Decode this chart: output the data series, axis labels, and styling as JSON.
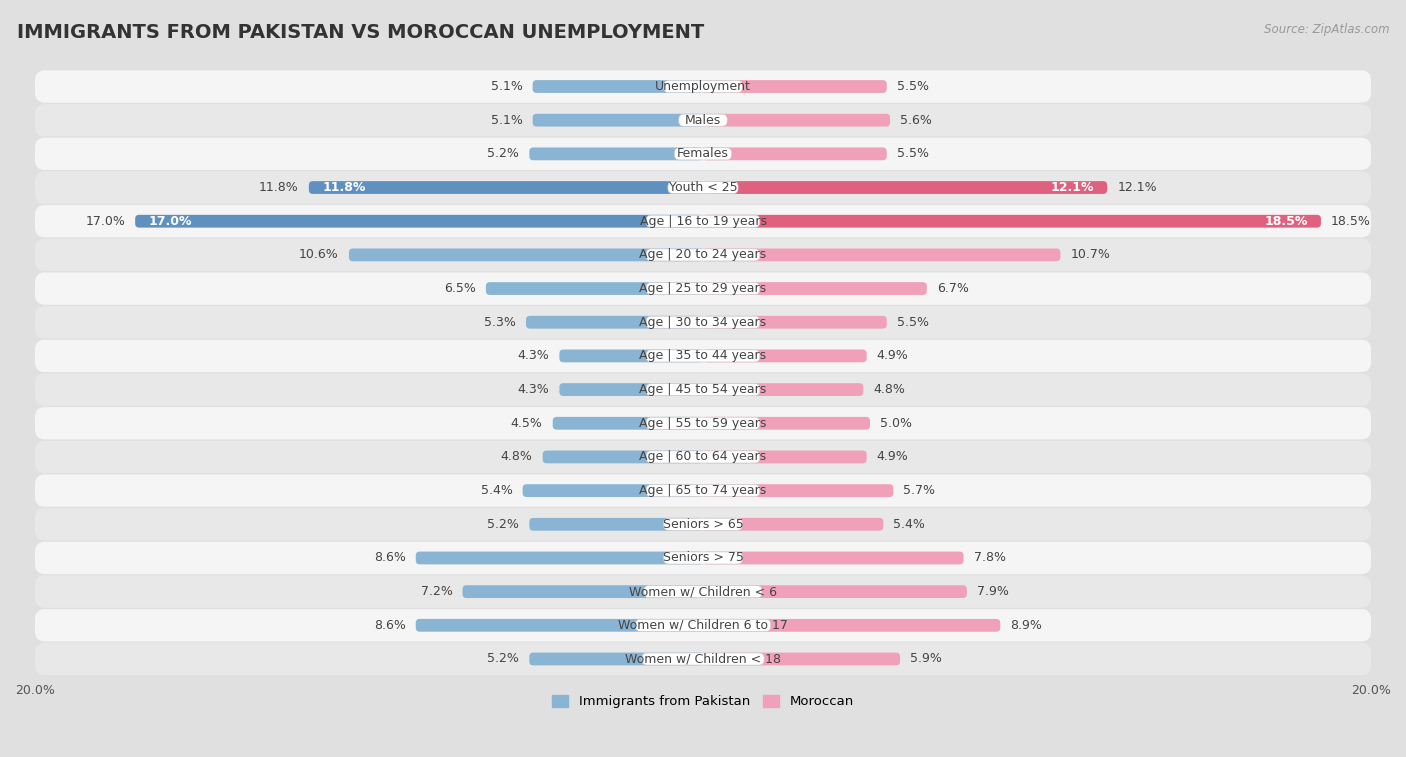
{
  "title": "IMMIGRANTS FROM PAKISTAN VS MOROCCAN UNEMPLOYMENT",
  "source": "Source: ZipAtlas.com",
  "categories": [
    "Unemployment",
    "Males",
    "Females",
    "Youth < 25",
    "Age | 16 to 19 years",
    "Age | 20 to 24 years",
    "Age | 25 to 29 years",
    "Age | 30 to 34 years",
    "Age | 35 to 44 years",
    "Age | 45 to 54 years",
    "Age | 55 to 59 years",
    "Age | 60 to 64 years",
    "Age | 65 to 74 years",
    "Seniors > 65",
    "Seniors > 75",
    "Women w/ Children < 6",
    "Women w/ Children 6 to 17",
    "Women w/ Children < 18"
  ],
  "pakistan_values": [
    5.1,
    5.1,
    5.2,
    11.8,
    17.0,
    10.6,
    6.5,
    5.3,
    4.3,
    4.3,
    4.5,
    4.8,
    5.4,
    5.2,
    8.6,
    7.2,
    8.6,
    5.2
  ],
  "moroccan_values": [
    5.5,
    5.6,
    5.5,
    12.1,
    18.5,
    10.7,
    6.7,
    5.5,
    4.9,
    4.8,
    5.0,
    4.9,
    5.7,
    5.4,
    7.8,
    7.9,
    8.9,
    5.9
  ],
  "pakistan_color": "#8ab4d4",
  "moroccan_color": "#f0a0b8",
  "pakistan_highlight_color": "#6090c0",
  "moroccan_highlight_color": "#e06080",
  "row_colors": [
    "#f5f5f5",
    "#e8e8e8"
  ],
  "background_color": "#e0e0e0",
  "xlim": 20.0,
  "legend_pakistan": "Immigrants from Pakistan",
  "legend_moroccan": "Moroccan",
  "title_fontsize": 14,
  "label_fontsize": 9,
  "value_fontsize": 9,
  "tick_fontsize": 9
}
